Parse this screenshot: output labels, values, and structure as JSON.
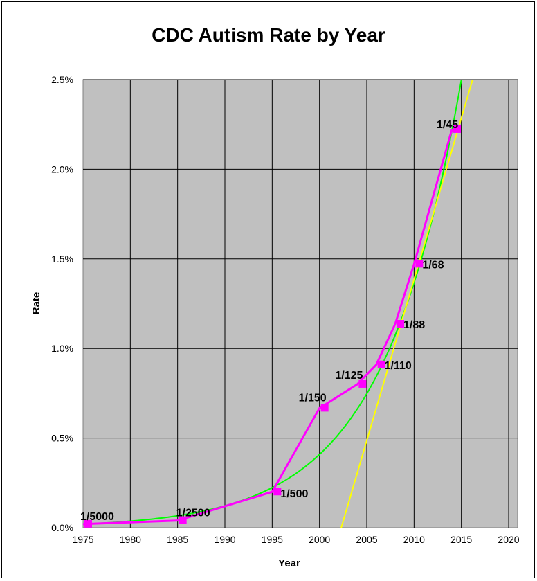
{
  "chart_data": {
    "type": "line",
    "title": "CDC Autism Rate by Year",
    "xlabel": "Year",
    "ylabel": "Rate",
    "xlim": [
      1975,
      2021
    ],
    "ylim": [
      0,
      2.5
    ],
    "xticks": [
      "1975",
      "1980",
      "1985",
      "1990",
      "1995",
      "2000",
      "2005",
      "2010",
      "2015",
      "2020"
    ],
    "yticks": [
      "0.0%",
      "0.5%",
      "1.0%",
      "1.5%",
      "2.0%",
      "2.5%"
    ],
    "grid": true,
    "background": "#c0c0c0",
    "series": [
      {
        "color": "#ff00ff",
        "x": [
          1975,
          1985,
          1995,
          2000,
          2004,
          2006,
          2008,
          2010,
          2014
        ],
        "y": [
          0.02,
          0.04,
          0.2,
          0.667,
          0.8,
          0.909,
          1.136,
          1.471,
          2.222
        ],
        "labels": [
          "1/5000",
          "1/2500",
          "1/500",
          "1/150",
          "1/125",
          "1/110",
          "1/88",
          "1/68",
          "1/45"
        ]
      }
    ],
    "trendlines": [
      {
        "type": "exponential",
        "color": "#00ff00",
        "a": 0.02,
        "b": 0.1207,
        "x0": 1975
      },
      {
        "type": "linear",
        "color": "#ffff00",
        "slope": 0.18,
        "x_intercept": 2002.3
      }
    ]
  }
}
